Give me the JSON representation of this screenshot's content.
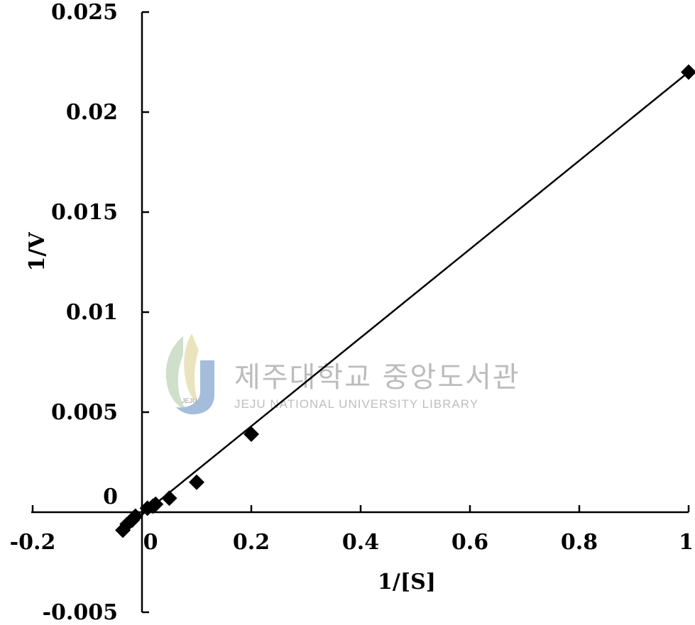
{
  "chart_data": {
    "type": "scatter",
    "title": "",
    "xlabel": "1/[S]",
    "ylabel": "1/V",
    "xlim": [
      -0.2,
      1.0
    ],
    "ylim": [
      -0.005,
      0.025
    ],
    "x_ticks": [
      -0.2,
      0,
      0.2,
      0.4,
      0.6,
      0.8,
      1.0
    ],
    "x_tick_labels": [
      "-0.2",
      "0",
      "0.2",
      "0.4",
      "0.6",
      "0.8",
      "1"
    ],
    "y_ticks": [
      -0.005,
      0,
      0.005,
      0.01,
      0.015,
      0.02,
      0.025
    ],
    "y_tick_labels": [
      "-0.005",
      "0",
      "0.005",
      "0.01",
      "0.015",
      "0.02",
      "0.025"
    ],
    "grid": false,
    "legend": "none",
    "marker": "diamond",
    "marker_color": "#000000",
    "series": [
      {
        "x": [
          -0.035,
          -0.027,
          -0.018,
          -0.012,
          0.01,
          0.02,
          0.025,
          0.05,
          0.1,
          0.2,
          1.0
        ],
        "y": [
          -0.0009,
          -0.0006,
          -0.0004,
          -0.0002,
          0.0002,
          0.0003,
          0.0004,
          0.0007,
          0.0015,
          0.0039,
          0.022
        ]
      }
    ],
    "fit_line": {
      "x": [
        -0.035,
        1.0
      ],
      "y": [
        -0.0009,
        0.022
      ],
      "color": "#000000"
    }
  },
  "watermark": {
    "text_ko": "제주대학교 중앙도서관",
    "text_en": "JEJU NATIONAL UNIVERSITY  LIBRARY",
    "logo_text": "JEJU"
  }
}
